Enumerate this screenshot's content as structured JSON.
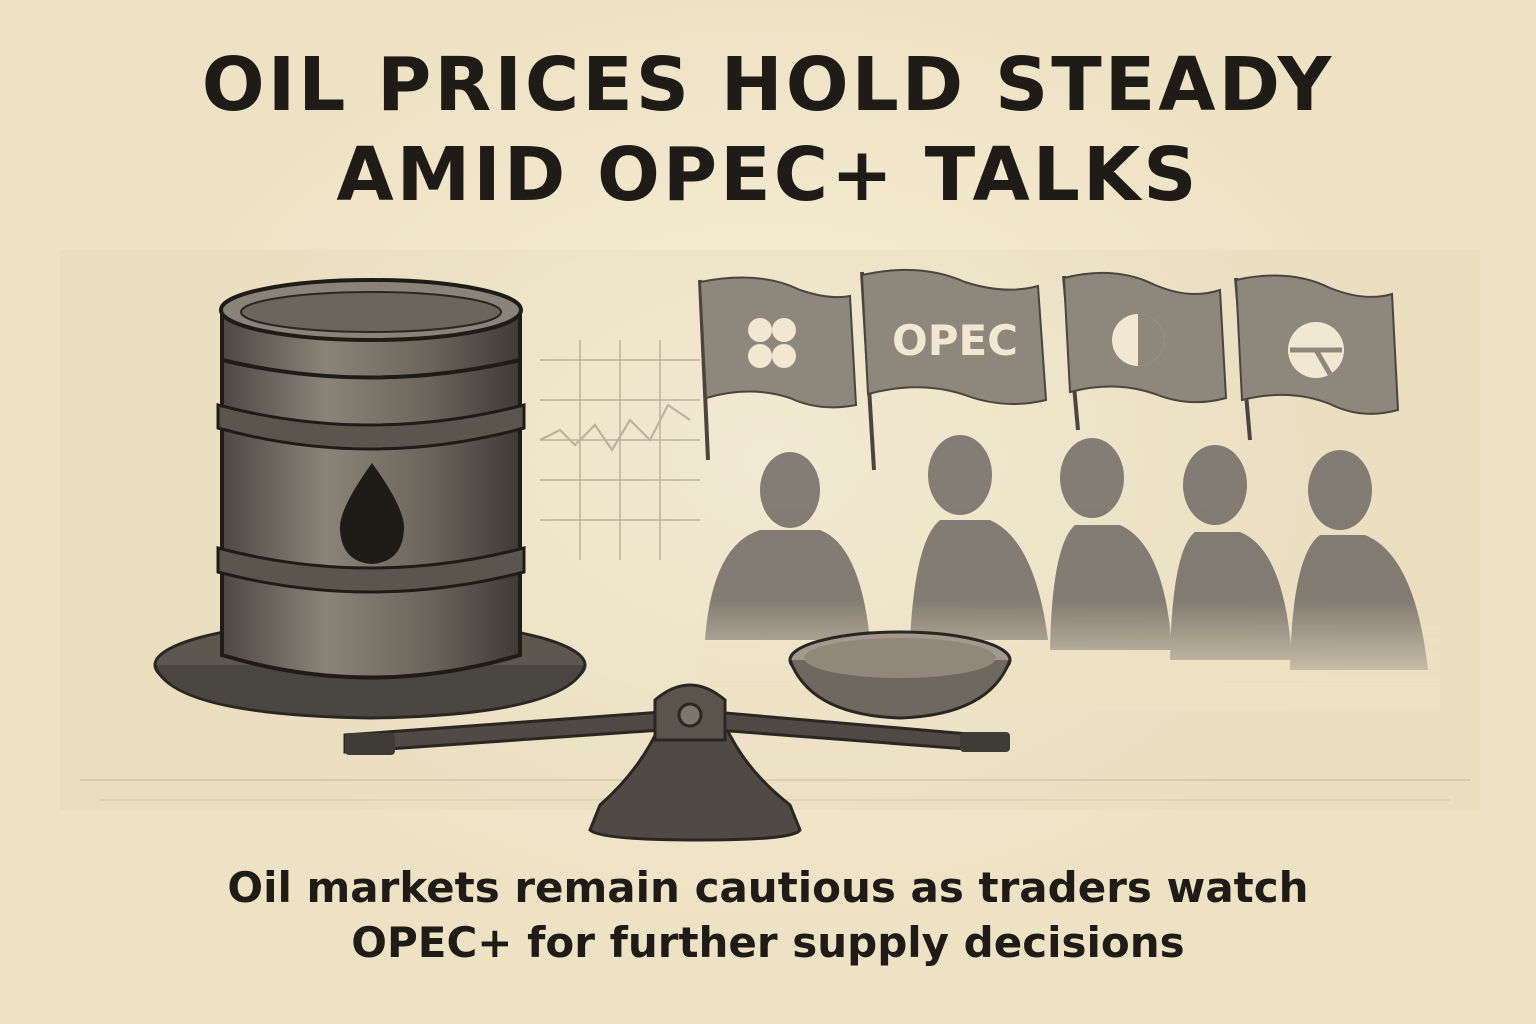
{
  "headline": {
    "line1": "OIL PRICES HOLD STEADY",
    "line2": "AMID OPEC+ TALKS"
  },
  "flag_label": "OPEC",
  "subheadline": {
    "line1": "Oil markets remain cautious as traders watch",
    "line2": "OPEC+ for further supply decisions"
  },
  "icons": [
    "oil-barrel-icon",
    "oil-drop-icon",
    "balance-scale-icon",
    "opec-flag-icon",
    "delegate-silhouette-icon",
    "price-chart-icon"
  ],
  "colors": {
    "paper": "#eee2c4",
    "ink": "#1f1c17",
    "barrel": "#6b655b",
    "flag": "#8d877c",
    "silhouette": "#77716a"
  }
}
